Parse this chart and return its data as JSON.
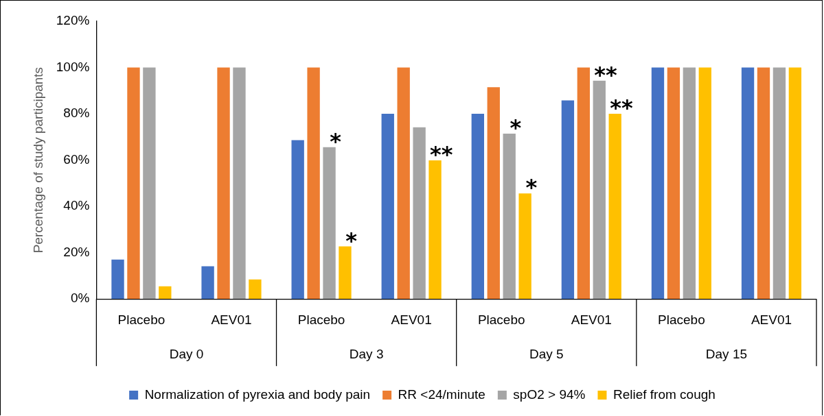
{
  "chart_data": {
    "type": "bar",
    "ylabel": "Percentage of study participants",
    "categories": [
      "Placebo",
      "AEV01",
      "Placebo",
      "AEV01",
      "Placebo",
      "AEV01",
      "Placebo",
      "AEV01"
    ],
    "series": [
      {
        "name": "Normalization of pyrexia and body pain",
        "color": "#4472c4",
        "values": [
          17,
          14.1,
          68.6,
          80,
          80,
          85.8,
          100,
          100
        ]
      },
      {
        "name": "RR <24/minute",
        "color": "#ed7d31",
        "values": [
          100,
          100,
          100,
          100,
          91.5,
          100,
          100,
          100
        ]
      },
      {
        "name": "spO2 > 94%",
        "color": "#a5a5a5",
        "values": [
          100,
          100,
          65.6,
          74.2,
          71.4,
          94.3,
          100,
          100
        ],
        "value_labels": [
          null,
          null,
          "*",
          null,
          "*",
          "**",
          null,
          null
        ]
      },
      {
        "name": "Relief from cough",
        "color": "#ffc000",
        "values": [
          5.5,
          8.4,
          22.7,
          59.9,
          45.6,
          80,
          100,
          100
        ],
        "value_labels": [
          null,
          null,
          "*",
          "**",
          "*",
          "**",
          null,
          null
        ]
      }
    ],
    "ylim": [
      0,
      120
    ],
    "yticks": [
      {
        "value": 0,
        "label": "0%"
      },
      {
        "value": 20,
        "label": "20%"
      },
      {
        "value": 40,
        "label": "40%"
      },
      {
        "value": 60,
        "label": "60%"
      },
      {
        "value": 80,
        "label": "80%"
      },
      {
        "value": 100,
        "label": "100%"
      },
      {
        "value": 120,
        "label": "120%"
      }
    ],
    "grid": false,
    "legend": "bottom",
    "annotations": [
      "Day 0",
      "Day 3",
      "Day 5",
      "Day 15"
    ]
  }
}
